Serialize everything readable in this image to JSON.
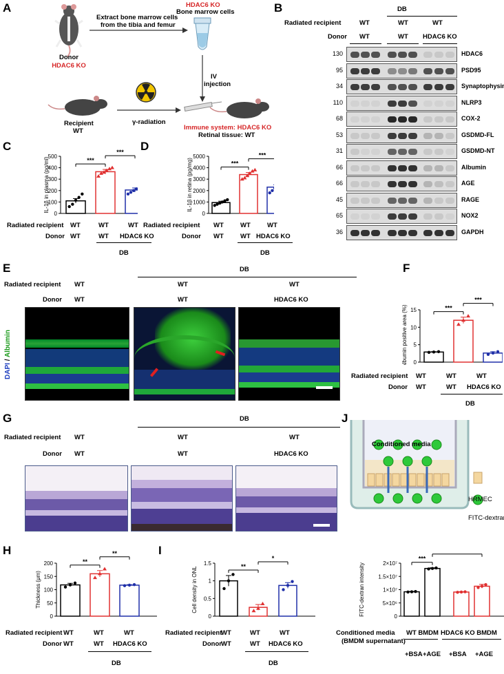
{
  "panels": {
    "A": "A",
    "B": "B",
    "C": "C",
    "D": "D",
    "E": "E",
    "F": "F",
    "G": "G",
    "H": "H",
    "I": "I",
    "J": "J"
  },
  "panelA": {
    "donor_label": "Donor",
    "donor_genotype": "HDAC6 KO",
    "extract_text_1": "Extract bone marrow cells",
    "extract_text_2": "from the tibia and femur",
    "tube_title": "HDAC6 KO",
    "tube_subtitle": "Bone marrow cells",
    "iv_1": "IV",
    "iv_2": "injection",
    "recipient_label": "Recipient",
    "recipient_genotype": "WT",
    "radiation": "γ-radiation",
    "immune_system": "Immune system: HDAC6 KO",
    "retinal_tissue": "Retinal tissue: WT"
  },
  "panelB": {
    "db": "DB",
    "radiated_recipient": "Radiated recipient",
    "donor": "Donor",
    "groups": [
      {
        "recipient": "WT",
        "donor": "WT"
      },
      {
        "recipient": "WT",
        "donor": "WT"
      },
      {
        "recipient": "WT",
        "donor": "HDAC6 KO"
      }
    ],
    "blots": [
      {
        "kda": "130",
        "name": "HDAC6",
        "intensity": [
          0.7,
          0.7,
          0.7,
          0.7,
          0.7,
          0.7,
          0.1,
          0.1,
          0.1
        ]
      },
      {
        "kda": "95",
        "name": "PSD95",
        "intensity": [
          0.8,
          0.8,
          0.8,
          0.4,
          0.4,
          0.5,
          0.7,
          0.7,
          0.7
        ]
      },
      {
        "kda": "34",
        "name": "Synaptophysin",
        "intensity": [
          0.8,
          0.8,
          0.8,
          0.7,
          0.7,
          0.7,
          0.8,
          0.8,
          0.8
        ]
      },
      {
        "kda": "110",
        "name": "NLRP3",
        "intensity": [
          0.05,
          0.05,
          0.05,
          0.8,
          0.8,
          0.7,
          0.05,
          0.05,
          0.05
        ]
      },
      {
        "kda": "68",
        "name": "COX-2",
        "intensity": [
          0.05,
          0.05,
          0.05,
          0.9,
          0.9,
          0.9,
          0.1,
          0.1,
          0.1
        ]
      },
      {
        "kda": "53",
        "name": "GSDMD-FL",
        "intensity": [
          0.1,
          0.1,
          0.1,
          0.8,
          0.8,
          0.8,
          0.2,
          0.2,
          0.1
        ]
      },
      {
        "kda": "31",
        "name": "GSDMD-NT",
        "intensity": [
          0.1,
          0.05,
          0.05,
          0.6,
          0.6,
          0.6,
          0.1,
          0.1,
          0.05
        ]
      },
      {
        "kda": "66",
        "name": "Albumin",
        "intensity": [
          0.1,
          0.1,
          0.1,
          0.85,
          0.85,
          0.85,
          0.2,
          0.2,
          0.1
        ]
      },
      {
        "kda": "66",
        "name": "AGE",
        "intensity": [
          0.1,
          0.1,
          0.1,
          0.85,
          0.85,
          0.85,
          0.2,
          0.15,
          0.1
        ]
      },
      {
        "kda": "45",
        "name": "RAGE",
        "intensity": [
          0.1,
          0.1,
          0.1,
          0.6,
          0.6,
          0.6,
          0.2,
          0.1,
          0.1
        ]
      },
      {
        "kda": "65",
        "name": "NOX2",
        "intensity": [
          0.05,
          0.05,
          0.05,
          0.8,
          0.8,
          0.8,
          0.1,
          0.1,
          0.05
        ]
      },
      {
        "kda": "36",
        "name": "GAPDH",
        "intensity": [
          0.85,
          0.85,
          0.85,
          0.85,
          0.85,
          0.85,
          0.85,
          0.85,
          0.85
        ]
      }
    ]
  },
  "rowlabels": {
    "radiated_recipient": "Radiated recipient",
    "donor": "Donor",
    "wt": "WT",
    "hdac6ko": "HDAC6 KO",
    "db": "DB"
  },
  "panelE": {
    "stain_dapi": "DAPI",
    "stain_sep": " / ",
    "stain_albumin": "Albumin"
  },
  "panelJ": {
    "conditioned_media": "Conditioned media",
    "hrmec": "HRMEC",
    "fitc": "FITC-dextran",
    "cm_label_1": "Conditioned media",
    "cm_label_2": "(BMDM supernatant)",
    "wt_bmdm": "WT BMDM",
    "ko_bmdm": "HDAC6 KO BMDM",
    "bsa": "+BSA",
    "age": "+AGE"
  },
  "chart_data": [
    {
      "id": "C",
      "type": "bar",
      "ylabel": "IL-1β in plasma (pg/ml)",
      "ylim": [
        0,
        500
      ],
      "yticks": [
        0,
        100,
        200,
        300,
        400,
        500
      ],
      "categories": [
        "WT/WT",
        "WT/WT DB",
        "WT/HDAC6 KO DB"
      ],
      "values": [
        110,
        365,
        205
      ],
      "errors": [
        20,
        20,
        18
      ],
      "points": [
        [
          60,
          80,
          115,
          140,
          170
        ],
        [
          325,
          350,
          360,
          375,
          390,
          400
        ],
        [
          170,
          185,
          200,
          215,
          225,
          240
        ]
      ],
      "significance": [
        {
          "from": 0,
          "to": 1,
          "label": "***"
        },
        {
          "from": 1,
          "to": 2,
          "label": "***"
        }
      ],
      "colors": [
        "#000000",
        "#e03030",
        "#1f2fa8"
      ]
    },
    {
      "id": "D",
      "type": "bar",
      "ylabel": "IL-1β in retina (pg/mg)",
      "ylim": [
        0,
        5000
      ],
      "yticks": [
        0,
        1000,
        2000,
        3000,
        4000,
        5000
      ],
      "categories": [
        "WT/WT",
        "WT/WT DB",
        "WT/HDAC6 KO DB"
      ],
      "values": [
        950,
        3400,
        2300
      ],
      "errors": [
        120,
        180,
        200
      ],
      "points": [
        [
          700,
          800,
          900,
          1000,
          1100,
          1200
        ],
        [
          3000,
          3100,
          3300,
          3500,
          3700,
          3800
        ],
        [
          1800,
          2000,
          2200,
          2400,
          2600,
          2900
        ]
      ],
      "significance": [
        {
          "from": 0,
          "to": 1,
          "label": "***"
        },
        {
          "from": 1,
          "to": 2,
          "label": "***"
        }
      ],
      "colors": [
        "#000000",
        "#e03030",
        "#1f2fa8"
      ]
    },
    {
      "id": "F",
      "type": "bar",
      "ylabel": "Albumin positive area (%)",
      "ylim": [
        0,
        15
      ],
      "yticks": [
        0,
        5,
        10,
        15
      ],
      "categories": [
        "WT/WT",
        "WT/WT DB",
        "WT/HDAC6 KO DB"
      ],
      "values": [
        2.9,
        12.0,
        2.6
      ],
      "errors": [
        0.1,
        0.9,
        0.4
      ],
      "points": [
        [
          2.8,
          2.9,
          3.0
        ],
        [
          10.8,
          12.0,
          13.2
        ],
        [
          2.2,
          2.6,
          3.0
        ]
      ],
      "significance": [
        {
          "from": 0,
          "to": 1,
          "label": "***"
        },
        {
          "from": 1,
          "to": 2,
          "label": "***"
        }
      ],
      "colors": [
        "#000000",
        "#e03030",
        "#1f2fa8"
      ]
    },
    {
      "id": "H",
      "type": "bar",
      "ylabel": "Thickness (μm)",
      "ylim": [
        0,
        200
      ],
      "yticks": [
        0,
        50,
        100,
        150,
        200
      ],
      "categories": [
        "WT/WT",
        "WT/WT DB",
        "WT/HDAC6 KO DB"
      ],
      "values": [
        118,
        160,
        117
      ],
      "errors": [
        6,
        12,
        2
      ],
      "points": [
        [
          110,
          118,
          125
        ],
        [
          145,
          160,
          178
        ],
        [
          115,
          117,
          119
        ]
      ],
      "significance": [
        {
          "from": 0,
          "to": 1,
          "label": "**"
        },
        {
          "from": 1,
          "to": 2,
          "label": "**"
        }
      ],
      "colors": [
        "#000000",
        "#e03030",
        "#1f2fa8"
      ]
    },
    {
      "id": "I",
      "type": "bar",
      "ylabel": "Cell density in ONL",
      "ylim": [
        0,
        1.5
      ],
      "yticks": [
        0.0,
        0.5,
        1.0,
        1.5
      ],
      "categories": [
        "WT/WT",
        "WT/WT DB",
        "WT/HDAC6 KO DB"
      ],
      "values": [
        1.0,
        0.25,
        0.87
      ],
      "errors": [
        0.15,
        0.08,
        0.08
      ],
      "points": [
        [
          0.78,
          1.0,
          1.18
        ],
        [
          0.15,
          0.22,
          0.35
        ],
        [
          0.75,
          0.87,
          0.98
        ]
      ],
      "significance": [
        {
          "from": 0,
          "to": 1,
          "label": "**"
        },
        {
          "from": 1,
          "to": 2,
          "label": "*"
        }
      ],
      "colors": [
        "#000000",
        "#e03030",
        "#1f2fa8"
      ]
    },
    {
      "id": "J",
      "type": "bar",
      "ylabel": "FITC-dextran intensity",
      "ylim": [
        0,
        20000000
      ],
      "yticks": [
        0,
        5000000,
        10000000,
        15000000,
        20000000
      ],
      "ytick_labels": [
        "0",
        "5×10⁶",
        "1×10⁷",
        "1.5×10⁷",
        "2×10⁷"
      ],
      "categories": [
        "WT BMDM +BSA",
        "WT BMDM +AGE",
        "HDAC6 KO BMDM +BSA",
        "HDAC6 KO BMDM +AGE"
      ],
      "values": [
        9200000,
        18000000,
        9100000,
        11300000
      ],
      "errors": [
        150000,
        250000,
        150000,
        700000
      ],
      "points": [
        [
          9100000,
          9200000,
          9300000
        ],
        [
          17800000,
          18000000,
          18200000
        ],
        [
          9000000,
          9100000,
          9200000
        ],
        [
          10800000,
          11300000,
          11900000
        ]
      ],
      "significance": [
        {
          "from": 0,
          "to": 1,
          "label": "***"
        },
        {
          "from": 1,
          "to": 3,
          "label": "***"
        }
      ],
      "colors": [
        "#000000",
        "#000000",
        "#e03030",
        "#e03030"
      ]
    }
  ]
}
